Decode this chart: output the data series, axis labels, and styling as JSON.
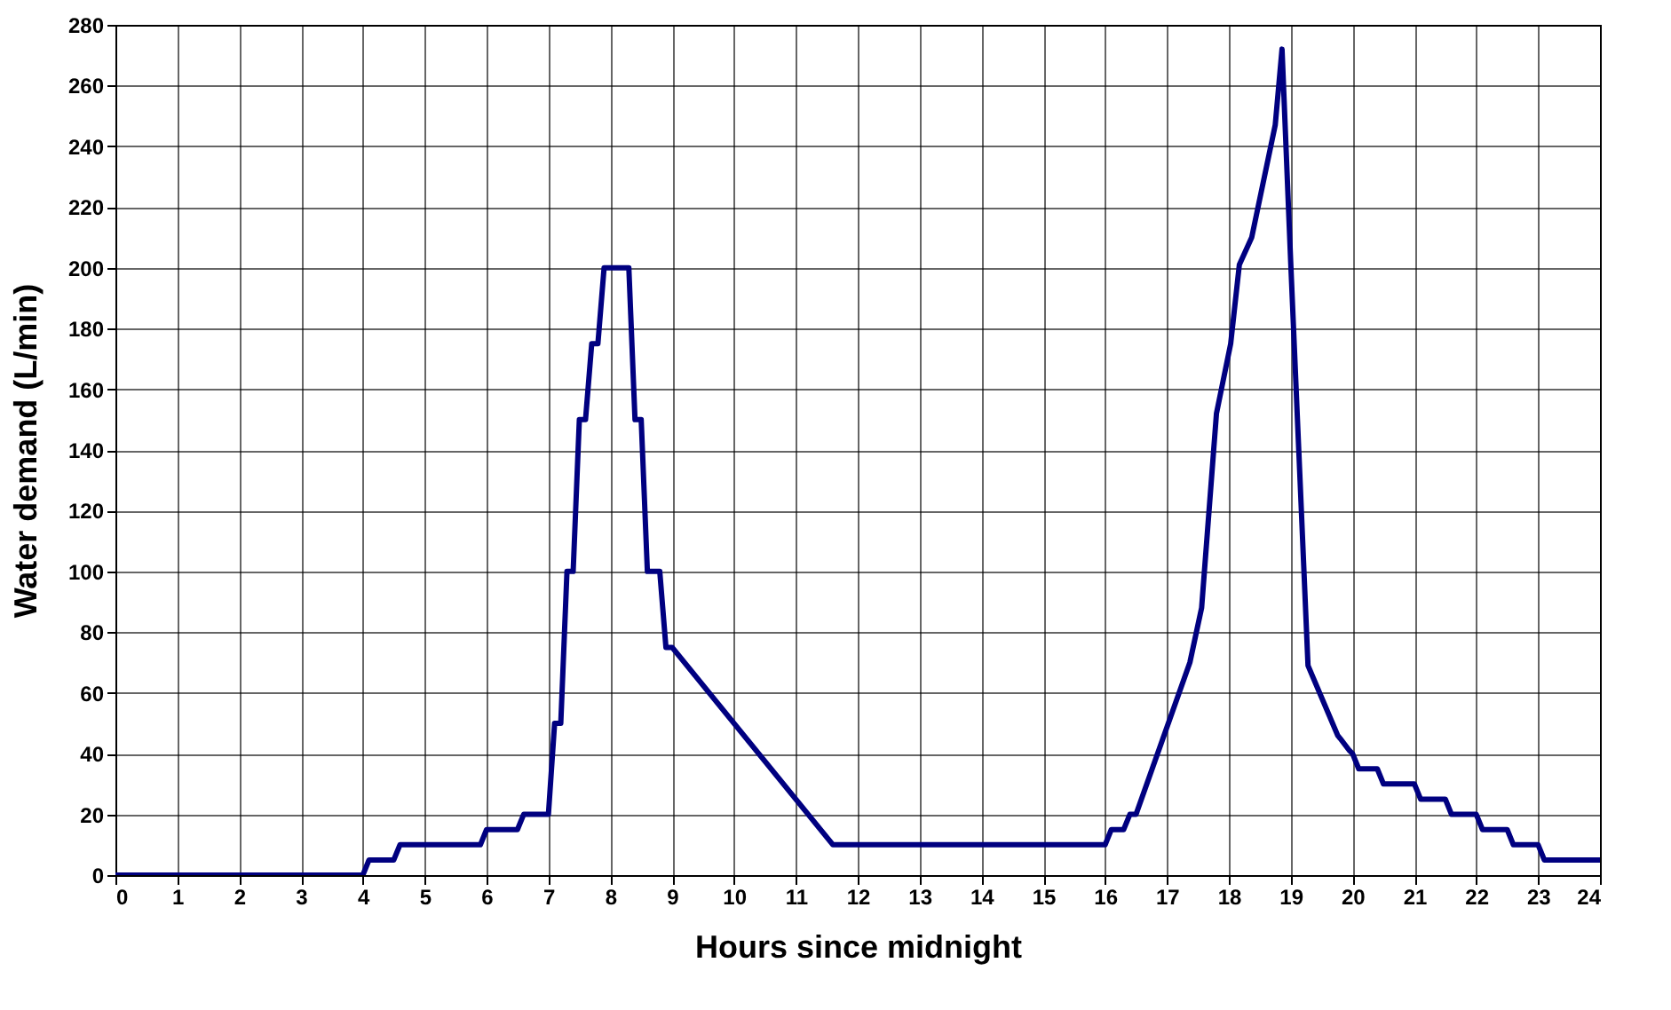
{
  "chart_data": {
    "type": "line",
    "xlabel": "Hours since midnight",
    "ylabel": "Water demand (L/min)",
    "xlim": [
      0,
      24
    ],
    "xticks": [
      0,
      1,
      2,
      3,
      4,
      5,
      6,
      7,
      8,
      9,
      10,
      11,
      12,
      13,
      14,
      15,
      16,
      17,
      18,
      19,
      20,
      21,
      22,
      23,
      24
    ],
    "ylim": [
      0,
      280
    ],
    "yticks": [
      0,
      20,
      40,
      60,
      80,
      100,
      120,
      140,
      160,
      180,
      200,
      220,
      240,
      260,
      280
    ],
    "grid": true,
    "legend": false,
    "marker": "none",
    "line_style": "solid",
    "series": [
      {
        "color": "#000080",
        "x": [
          0,
          4.0,
          4.1,
          4.5,
          4.6,
          5.9,
          6.0,
          6.5,
          6.6,
          7.0,
          7.1,
          7.2,
          7.3,
          7.4,
          7.5,
          7.6,
          7.7,
          7.8,
          7.9,
          8.3,
          8.4,
          8.5,
          8.6,
          8.8,
          8.9,
          9.0,
          11.6,
          16.0,
          16.1,
          16.3,
          16.4,
          16.5,
          17.37,
          17.56,
          17.8,
          18.03,
          18.17,
          18.37,
          18.75,
          18.86,
          19.0,
          19.28,
          19.76,
          19.8,
          19.95,
          20.0,
          20.1,
          20.4,
          20.5,
          21.0,
          21.1,
          21.5,
          21.6,
          22.0,
          22.1,
          22.5,
          22.6,
          23.0,
          23.1,
          24
        ],
        "values": [
          0,
          0,
          5,
          5,
          10,
          10,
          15,
          15,
          20,
          20,
          50,
          50,
          100,
          100,
          150,
          150,
          175,
          175,
          200,
          200,
          150,
          150,
          100,
          100,
          75,
          75,
          10,
          10,
          15,
          15,
          20,
          20,
          70,
          88,
          152,
          175,
          201,
          210,
          247,
          272,
          202,
          69,
          46,
          45,
          41,
          40,
          35,
          35,
          30,
          30,
          25,
          25,
          20,
          20,
          15,
          15,
          10,
          10,
          5,
          5
        ]
      }
    ]
  }
}
